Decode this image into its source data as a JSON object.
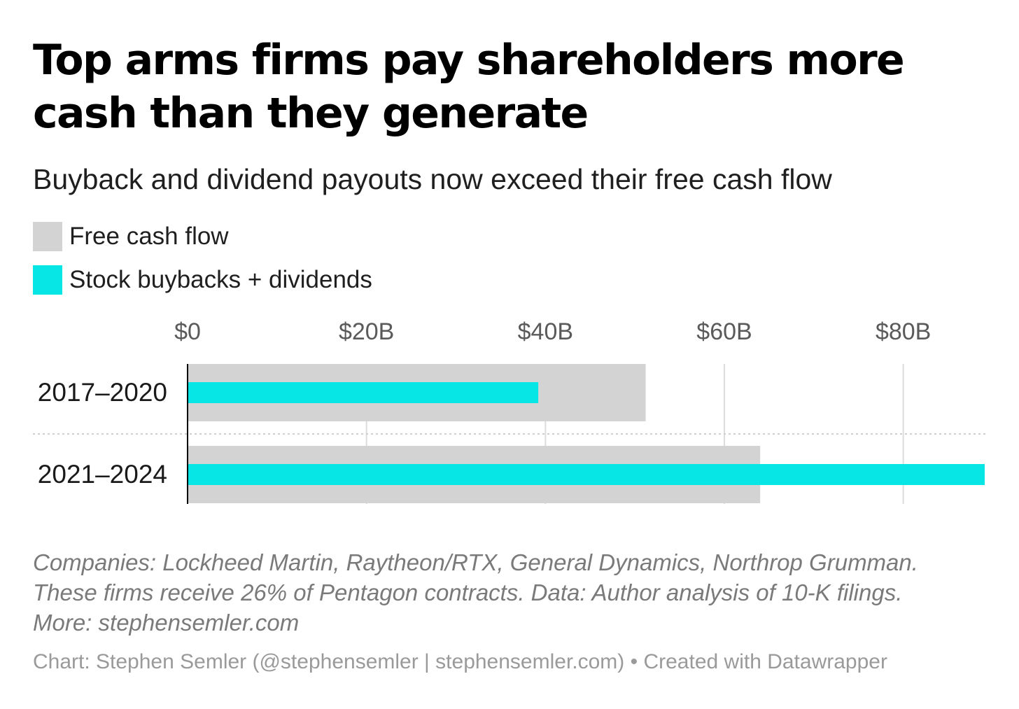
{
  "title": "Top arms firms pay shareholders more cash than they generate",
  "subtitle": "Buyback and dividend payouts now exceed their free cash flow",
  "colors": {
    "free_cash_flow": "#d3d3d3",
    "buybacks_dividends": "#08e5e5",
    "gridline": "#dcdcdc",
    "axis_line": "#000000",
    "separator": "#cfcfcf"
  },
  "legend": [
    {
      "label": "Free cash flow",
      "color": "#d3d3d3"
    },
    {
      "label": "Stock buybacks + dividends",
      "color": "#08e5e5"
    }
  ],
  "chart_data": {
    "type": "bar",
    "orientation": "horizontal",
    "layout": "overlaid",
    "categories": [
      "2017–2020",
      "2021–2024"
    ],
    "series": [
      {
        "name": "Free cash flow",
        "values": [
          51.2,
          64.0
        ]
      },
      {
        "name": "Stock buybacks + dividends",
        "values": [
          39.2,
          89.1
        ]
      }
    ],
    "xlim": [
      0,
      89.1
    ],
    "xticks": [
      0,
      20,
      40,
      60,
      80
    ],
    "xtick_labels": [
      "$0",
      "$20B",
      "$40B",
      "$60B",
      "$80B"
    ],
    "xaxis_position": "top",
    "grid": true,
    "legend_position": "top-left",
    "title": "Top arms firms pay shareholders more cash than they generate",
    "xlabel": "",
    "ylabel": ""
  },
  "notes": [
    "Companies: Lockheed Martin, Raytheon/RTX, General Dynamics, Northrop Grumman.",
    "These firms receive 26% of Pentagon contracts. Data: Author analysis of 10-K filings.",
    "More: stephensemler.com"
  ],
  "credit": "Chart: Stephen Semler (@stephensemler | stephensemler.com) • Created with Datawrapper"
}
